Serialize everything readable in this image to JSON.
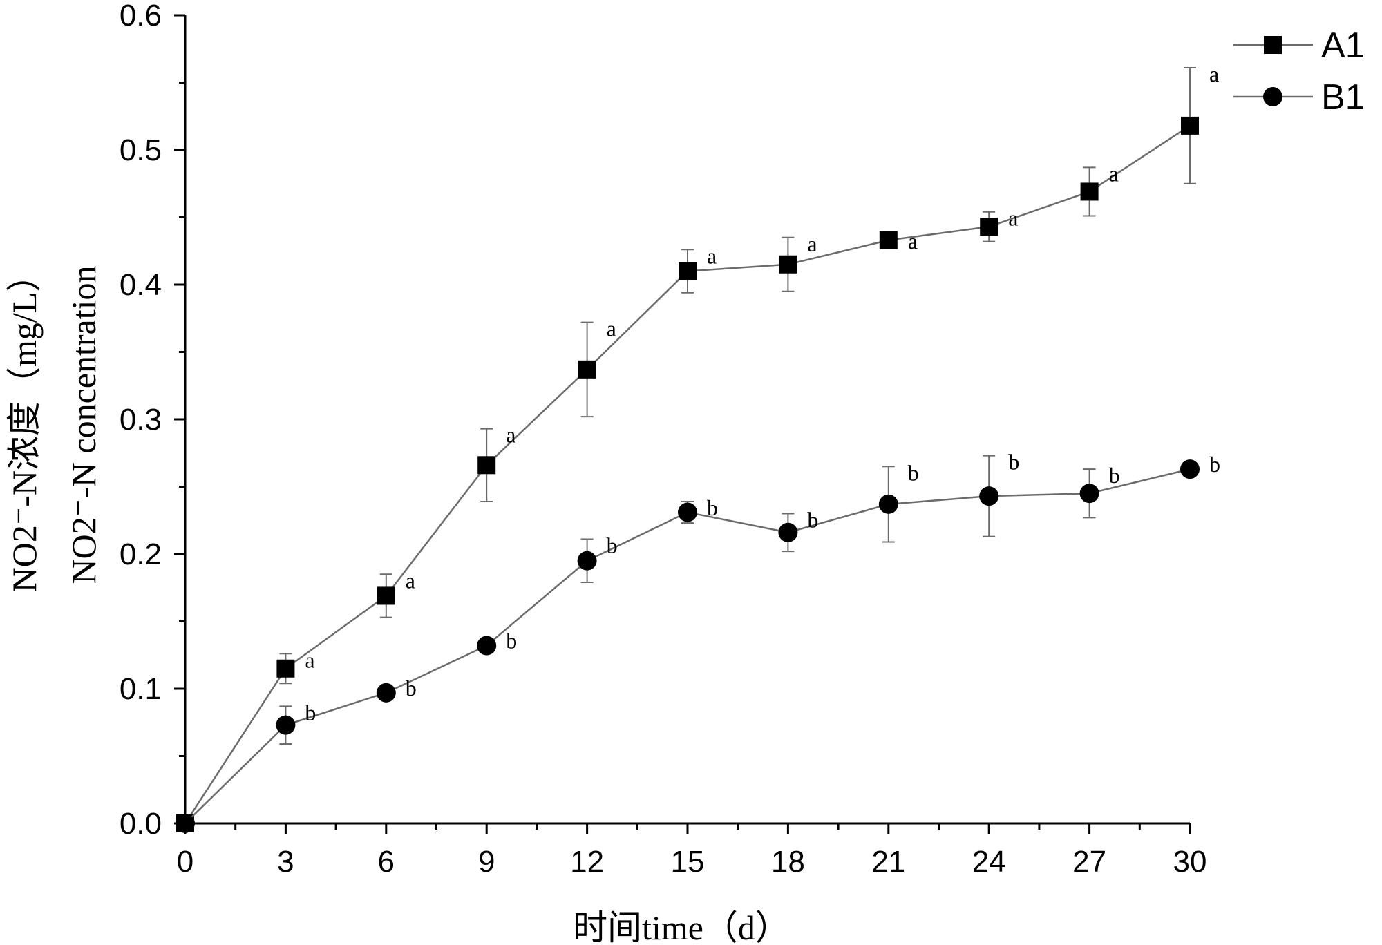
{
  "chart_data": {
    "type": "line",
    "xlabel": "时间time（d）",
    "ylabel_lines": [
      "NO2⁻-N浓度（mg/L）",
      "NO2⁻-N concentration"
    ],
    "xlim": [
      0,
      30
    ],
    "ylim": [
      0,
      0.6
    ],
    "x_ticks": [
      0,
      3,
      6,
      9,
      12,
      15,
      18,
      21,
      24,
      27,
      30
    ],
    "y_ticks": [
      0.0,
      0.1,
      0.2,
      0.3,
      0.4,
      0.5,
      0.6
    ],
    "y_tick_labels": [
      "0.0",
      "0.1",
      "0.2",
      "0.3",
      "0.4",
      "0.5",
      "0.6"
    ],
    "grid": false,
    "legend_position": "top-right",
    "x": [
      0,
      3,
      6,
      9,
      12,
      15,
      18,
      21,
      24,
      27,
      30
    ],
    "series": [
      {
        "name": "A1",
        "marker": "square",
        "values": [
          0.0,
          0.115,
          0.169,
          0.266,
          0.337,
          0.41,
          0.415,
          0.433,
          0.443,
          0.469,
          0.518
        ],
        "error": [
          0,
          0.011,
          0.016,
          0.027,
          0.035,
          0.016,
          0.02,
          0.004,
          0.011,
          0.018,
          0.043
        ],
        "significance": [
          "",
          "a",
          "a",
          "a",
          "a",
          "a",
          "a",
          "a",
          "a",
          "a",
          "a"
        ]
      },
      {
        "name": "B1",
        "marker": "circle",
        "values": [
          0.0,
          0.073,
          0.097,
          0.132,
          0.195,
          0.231,
          0.216,
          0.237,
          0.243,
          0.245,
          0.263
        ],
        "error": [
          0,
          0.014,
          0,
          0,
          0.016,
          0.008,
          0.014,
          0.028,
          0.03,
          0.018,
          0
        ],
        "significance": [
          "",
          "b",
          "b",
          "b",
          "b",
          "b",
          "b",
          "b",
          "b",
          "b",
          "b"
        ]
      }
    ]
  }
}
